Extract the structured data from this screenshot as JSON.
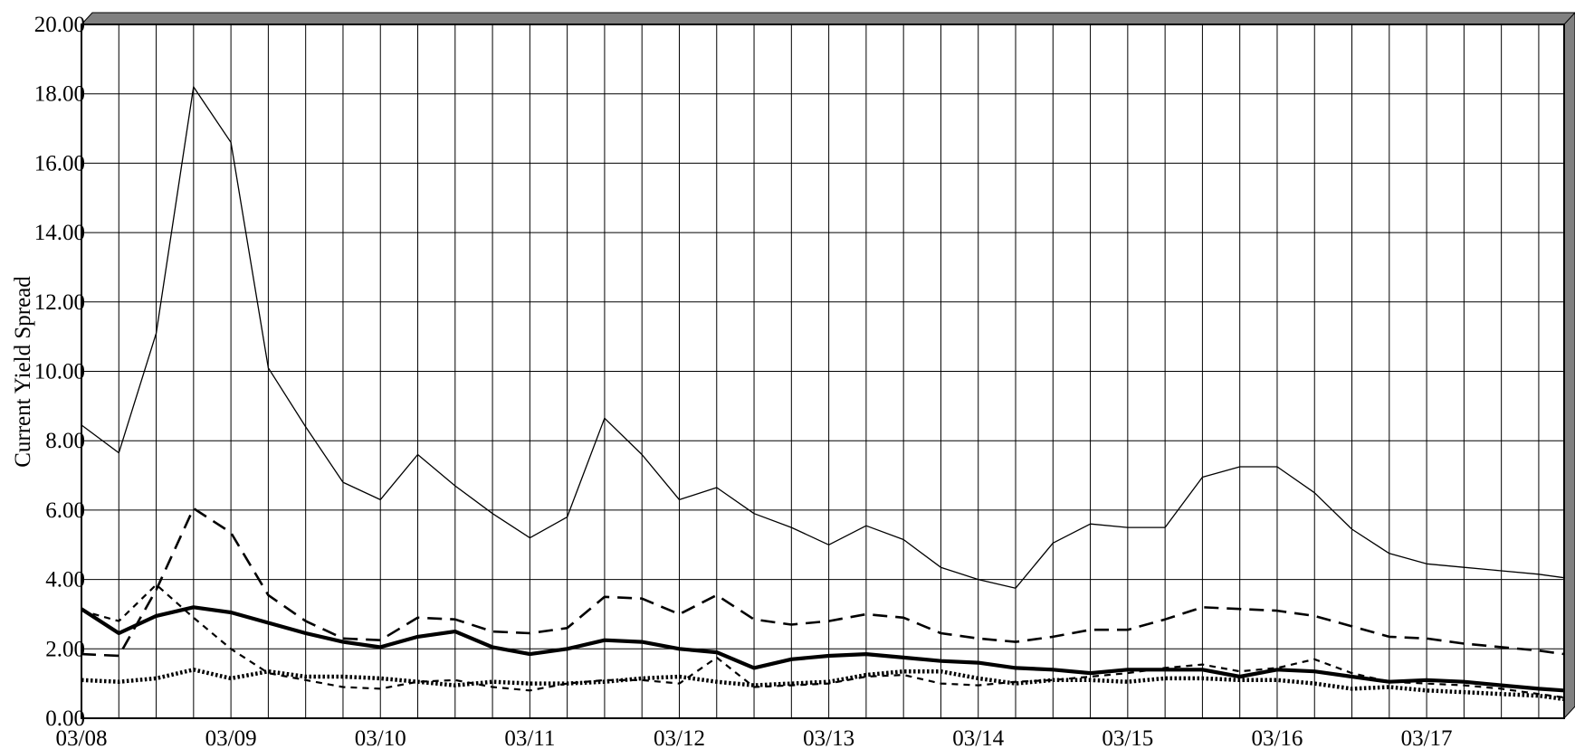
{
  "chart_data": {
    "type": "line",
    "title": "",
    "xlabel": "",
    "ylabel": "Current Yield Spread",
    "ylim": [
      0,
      20
    ],
    "yticks": [
      "0.00",
      "2.00",
      "4.00",
      "6.00",
      "8.00",
      "10.00",
      "12.00",
      "14.00",
      "16.00",
      "18.00",
      "20.00"
    ],
    "xlim": [
      2008.0,
      2017.92
    ],
    "xticks": [
      {
        "value": 2008,
        "label": "03/08"
      },
      {
        "value": 2009,
        "label": "03/09"
      },
      {
        "value": 2010,
        "label": "03/10"
      },
      {
        "value": 2011,
        "label": "03/11"
      },
      {
        "value": 2012,
        "label": "03/12"
      },
      {
        "value": 2013,
        "label": "03/13"
      },
      {
        "value": 2014,
        "label": "03/14"
      },
      {
        "value": 2015,
        "label": "03/15"
      },
      {
        "value": 2016,
        "label": "03/16"
      },
      {
        "value": 2017,
        "label": "03/17"
      }
    ],
    "grid": true,
    "x": [
      2008.0,
      2008.25,
      2008.5,
      2008.75,
      2009.0,
      2009.25,
      2009.5,
      2009.75,
      2010.0,
      2010.25,
      2010.5,
      2010.75,
      2011.0,
      2011.25,
      2011.5,
      2011.75,
      2012.0,
      2012.25,
      2012.5,
      2012.75,
      2013.0,
      2013.25,
      2013.5,
      2013.75,
      2014.0,
      2014.25,
      2014.5,
      2014.75,
      2015.0,
      2015.25,
      2015.5,
      2015.75,
      2016.0,
      2016.25,
      2016.5,
      2016.75,
      2017.0,
      2017.25,
      2017.5,
      2017.75,
      2017.92
    ],
    "series": [
      {
        "style": "thin-solid",
        "values": [
          8.45,
          7.65,
          11.1,
          18.2,
          16.6,
          10.1,
          8.4,
          6.8,
          6.3,
          7.6,
          6.7,
          5.9,
          5.2,
          5.8,
          8.65,
          7.6,
          6.3,
          6.65,
          5.9,
          5.5,
          5.0,
          5.55,
          5.15,
          4.35,
          4.0,
          3.75,
          5.05,
          5.6,
          5.5,
          5.5,
          6.95,
          7.25,
          7.25,
          6.5,
          5.45,
          4.75,
          4.45,
          4.35,
          4.25,
          4.15,
          4.05
        ]
      },
      {
        "style": "long-dash",
        "values": [
          1.85,
          1.8,
          3.7,
          6.05,
          5.35,
          3.55,
          2.8,
          2.3,
          2.25,
          2.9,
          2.85,
          2.5,
          2.45,
          2.6,
          3.5,
          3.45,
          3.0,
          3.55,
          2.85,
          2.7,
          2.8,
          3.0,
          2.9,
          2.45,
          2.3,
          2.2,
          2.35,
          2.55,
          2.55,
          2.85,
          3.2,
          3.15,
          3.1,
          2.95,
          2.65,
          2.35,
          2.3,
          2.15,
          2.05,
          1.95,
          1.85
        ]
      },
      {
        "style": "thick-solid",
        "values": [
          3.15,
          2.45,
          2.95,
          3.2,
          3.05,
          2.75,
          2.45,
          2.2,
          2.05,
          2.35,
          2.5,
          2.05,
          1.85,
          2.0,
          2.25,
          2.2,
          2.0,
          1.9,
          1.45,
          1.7,
          1.8,
          1.85,
          1.75,
          1.65,
          1.6,
          1.45,
          1.4,
          1.3,
          1.4,
          1.4,
          1.4,
          1.2,
          1.4,
          1.35,
          1.2,
          1.05,
          1.1,
          1.05,
          0.95,
          0.85,
          0.8
        ]
      },
      {
        "style": "short-dash",
        "values": [
          3.1,
          2.8,
          3.85,
          2.9,
          2.0,
          1.3,
          1.1,
          0.9,
          0.85,
          1.05,
          1.1,
          0.9,
          0.8,
          1.0,
          1.1,
          1.1,
          1.0,
          1.75,
          0.9,
          0.95,
          1.0,
          1.2,
          1.25,
          1.0,
          0.95,
          1.05,
          1.1,
          1.2,
          1.3,
          1.45,
          1.55,
          1.35,
          1.45,
          1.7,
          1.3,
          1.05,
          1.0,
          0.95,
          0.85,
          0.7,
          0.6
        ]
      },
      {
        "style": "dotted",
        "values": [
          1.1,
          1.05,
          1.15,
          1.4,
          1.15,
          1.35,
          1.2,
          1.2,
          1.15,
          1.05,
          0.95,
          1.05,
          1.0,
          1.0,
          1.05,
          1.15,
          1.2,
          1.05,
          0.95,
          1.0,
          1.05,
          1.25,
          1.35,
          1.35,
          1.15,
          1.0,
          1.1,
          1.1,
          1.05,
          1.15,
          1.15,
          1.1,
          1.1,
          1.0,
          0.85,
          0.9,
          0.8,
          0.75,
          0.7,
          0.65,
          0.55
        ]
      }
    ]
  }
}
